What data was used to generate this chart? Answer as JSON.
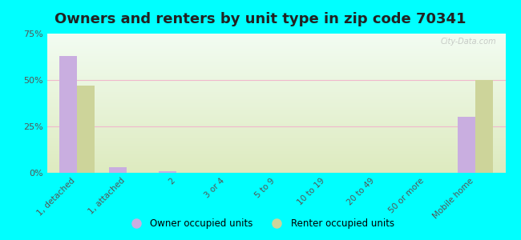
{
  "title": "Owners and renters by unit type in zip code 70341",
  "categories": [
    "1, detached",
    "1, attached",
    "2",
    "3 or 4",
    "5 to 9",
    "10 to 19",
    "20 to 49",
    "50 or more",
    "Mobile home"
  ],
  "owner_values": [
    63,
    3,
    1,
    0,
    0,
    0,
    0,
    0,
    30
  ],
  "renter_values": [
    47,
    0,
    0,
    0,
    0,
    0,
    0,
    0,
    50
  ],
  "owner_color": "#c9aee0",
  "renter_color": "#cdd eighteen",
  "renter_color2": "#cdd49a",
  "background_color": "#00ffff",
  "plot_bg": "#e8f2d8",
  "ylim": [
    0,
    75
  ],
  "yticks": [
    0,
    25,
    50,
    75
  ],
  "ytick_labels": [
    "0%",
    "25%",
    "50%",
    "75%"
  ],
  "bar_width": 0.35,
  "title_fontsize": 13,
  "watermark": "City-Data.com",
  "grid_color": "#f5c8d8",
  "label_color": "#555555"
}
